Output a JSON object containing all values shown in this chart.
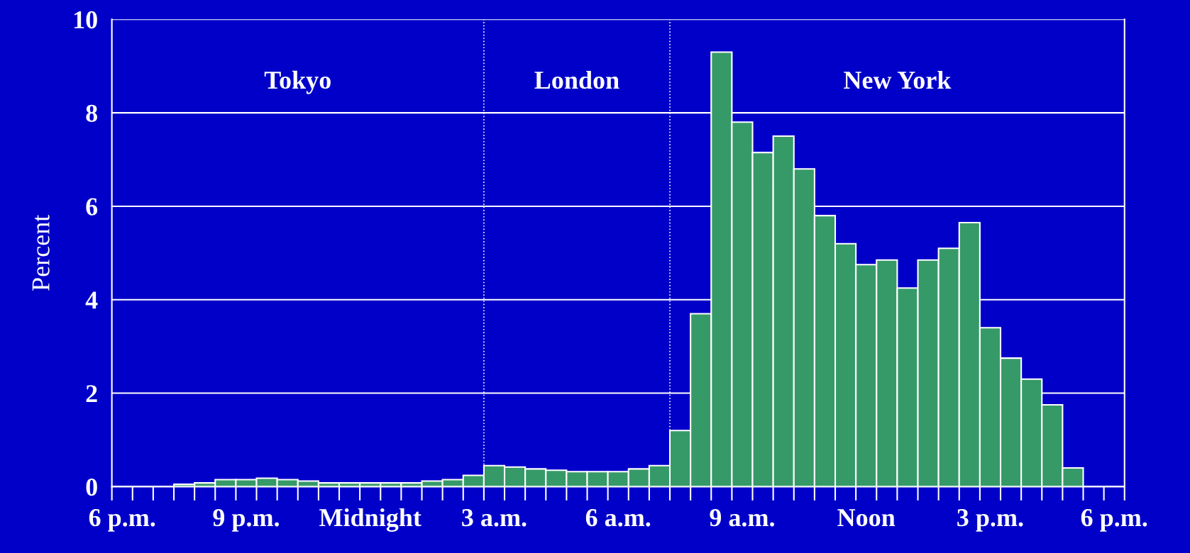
{
  "chart_data": {
    "type": "bar",
    "ylabel": "Percent",
    "categories": [
      "6 p.m.",
      null,
      null,
      null,
      null,
      null,
      "9 p.m.",
      null,
      null,
      null,
      null,
      null,
      "Midnight",
      null,
      null,
      null,
      null,
      null,
      "3 a.m.",
      null,
      null,
      null,
      null,
      null,
      "6 a.m.",
      null,
      null,
      null,
      null,
      null,
      "9 a.m.",
      null,
      null,
      null,
      null,
      null,
      "Noon",
      null,
      null,
      null,
      null,
      null,
      "3 p.m.",
      null,
      null,
      null,
      null,
      null,
      "6 p.m."
    ],
    "values": [
      0,
      0,
      0,
      0.05,
      0.08,
      0.15,
      0.15,
      0.18,
      0.15,
      0.12,
      0.08,
      0.08,
      0.08,
      0.08,
      0.08,
      0.12,
      0.15,
      0.24,
      0.45,
      0.42,
      0.38,
      0.35,
      0.32,
      0.32,
      0.32,
      0.38,
      0.45,
      1.2,
      3.7,
      9.3,
      7.8,
      7.15,
      7.5,
      6.8,
      5.8,
      5.2,
      4.75,
      4.85,
      4.25,
      4.85,
      5.1,
      5.65,
      3.4,
      2.75,
      2.3,
      1.75,
      0.4,
      0,
      0
    ],
    "color": "#369a68",
    "ylim": [
      0,
      10
    ],
    "yticks": [
      0,
      2,
      4,
      6,
      8,
      10
    ],
    "grid": "y",
    "annotations": [
      "Tokyo",
      "London",
      "New York"
    ]
  }
}
